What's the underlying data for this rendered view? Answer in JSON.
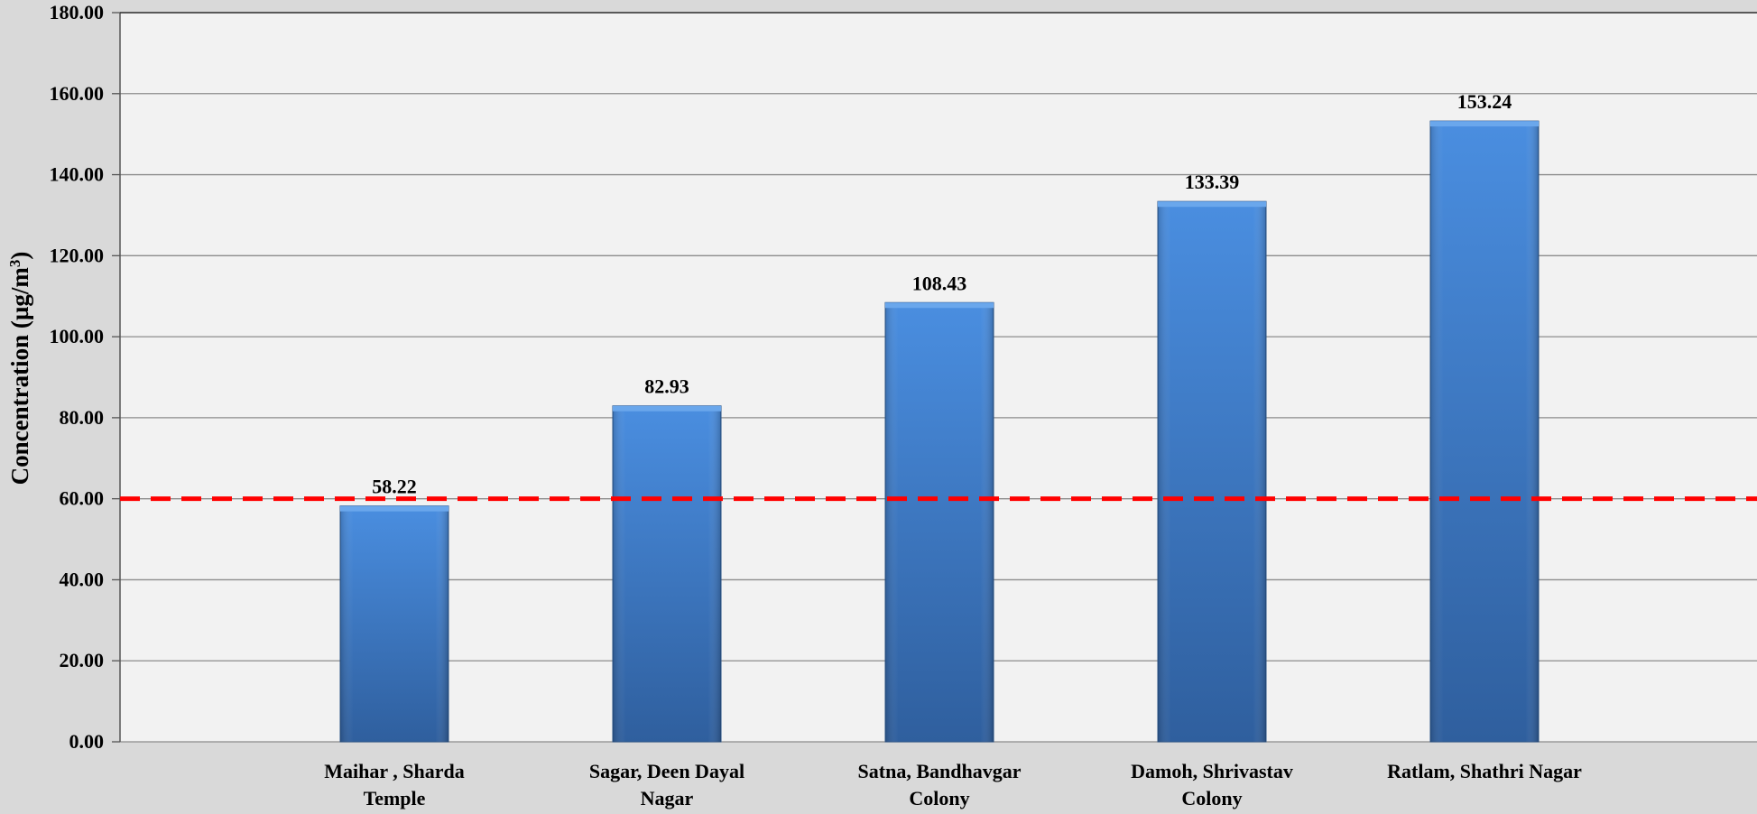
{
  "chart_data": {
    "type": "bar",
    "title": "",
    "xlabel": "",
    "ylabel": "Concentration (µg/m³)",
    "ylabel_parts": {
      "main": "Concentration (µg/m",
      "sup": "3",
      "close": ")"
    },
    "categories": [
      [
        "Maihar , Sharda",
        "Temple"
      ],
      [
        "Sagar, Deen Dayal",
        "Nagar"
      ],
      [
        "Satna, Bandhavgar",
        "Colony"
      ],
      [
        "Damoh, Shrivastav",
        "Colony"
      ],
      [
        "Ratlam, Shathri Nagar"
      ]
    ],
    "values": [
      58.22,
      82.93,
      108.43,
      133.39,
      153.24
    ],
    "data_labels": [
      "58.22",
      "82.93",
      "108.43",
      "133.39",
      "153.24"
    ],
    "ylim": [
      0,
      180
    ],
    "y_ticks": [
      0,
      20,
      40,
      60,
      80,
      100,
      120,
      140,
      160,
      180
    ],
    "y_tick_labels": [
      "0.00",
      "20.00",
      "40.00",
      "60.00",
      "80.00",
      "100.00",
      "120.00",
      "140.00",
      "160.00",
      "180.00"
    ],
    "reference_line": {
      "value": 60,
      "color": "#ff0000",
      "style": "dashed"
    },
    "grid": true,
    "legend": "none",
    "colors": {
      "bar_light": "#4a8ee0",
      "bar_dark": "#2f5f9e",
      "plot_background": "#f2f2f2",
      "outer_background": "#d9d9d9",
      "grid": "#8c8c8c",
      "text": "#000000"
    }
  }
}
